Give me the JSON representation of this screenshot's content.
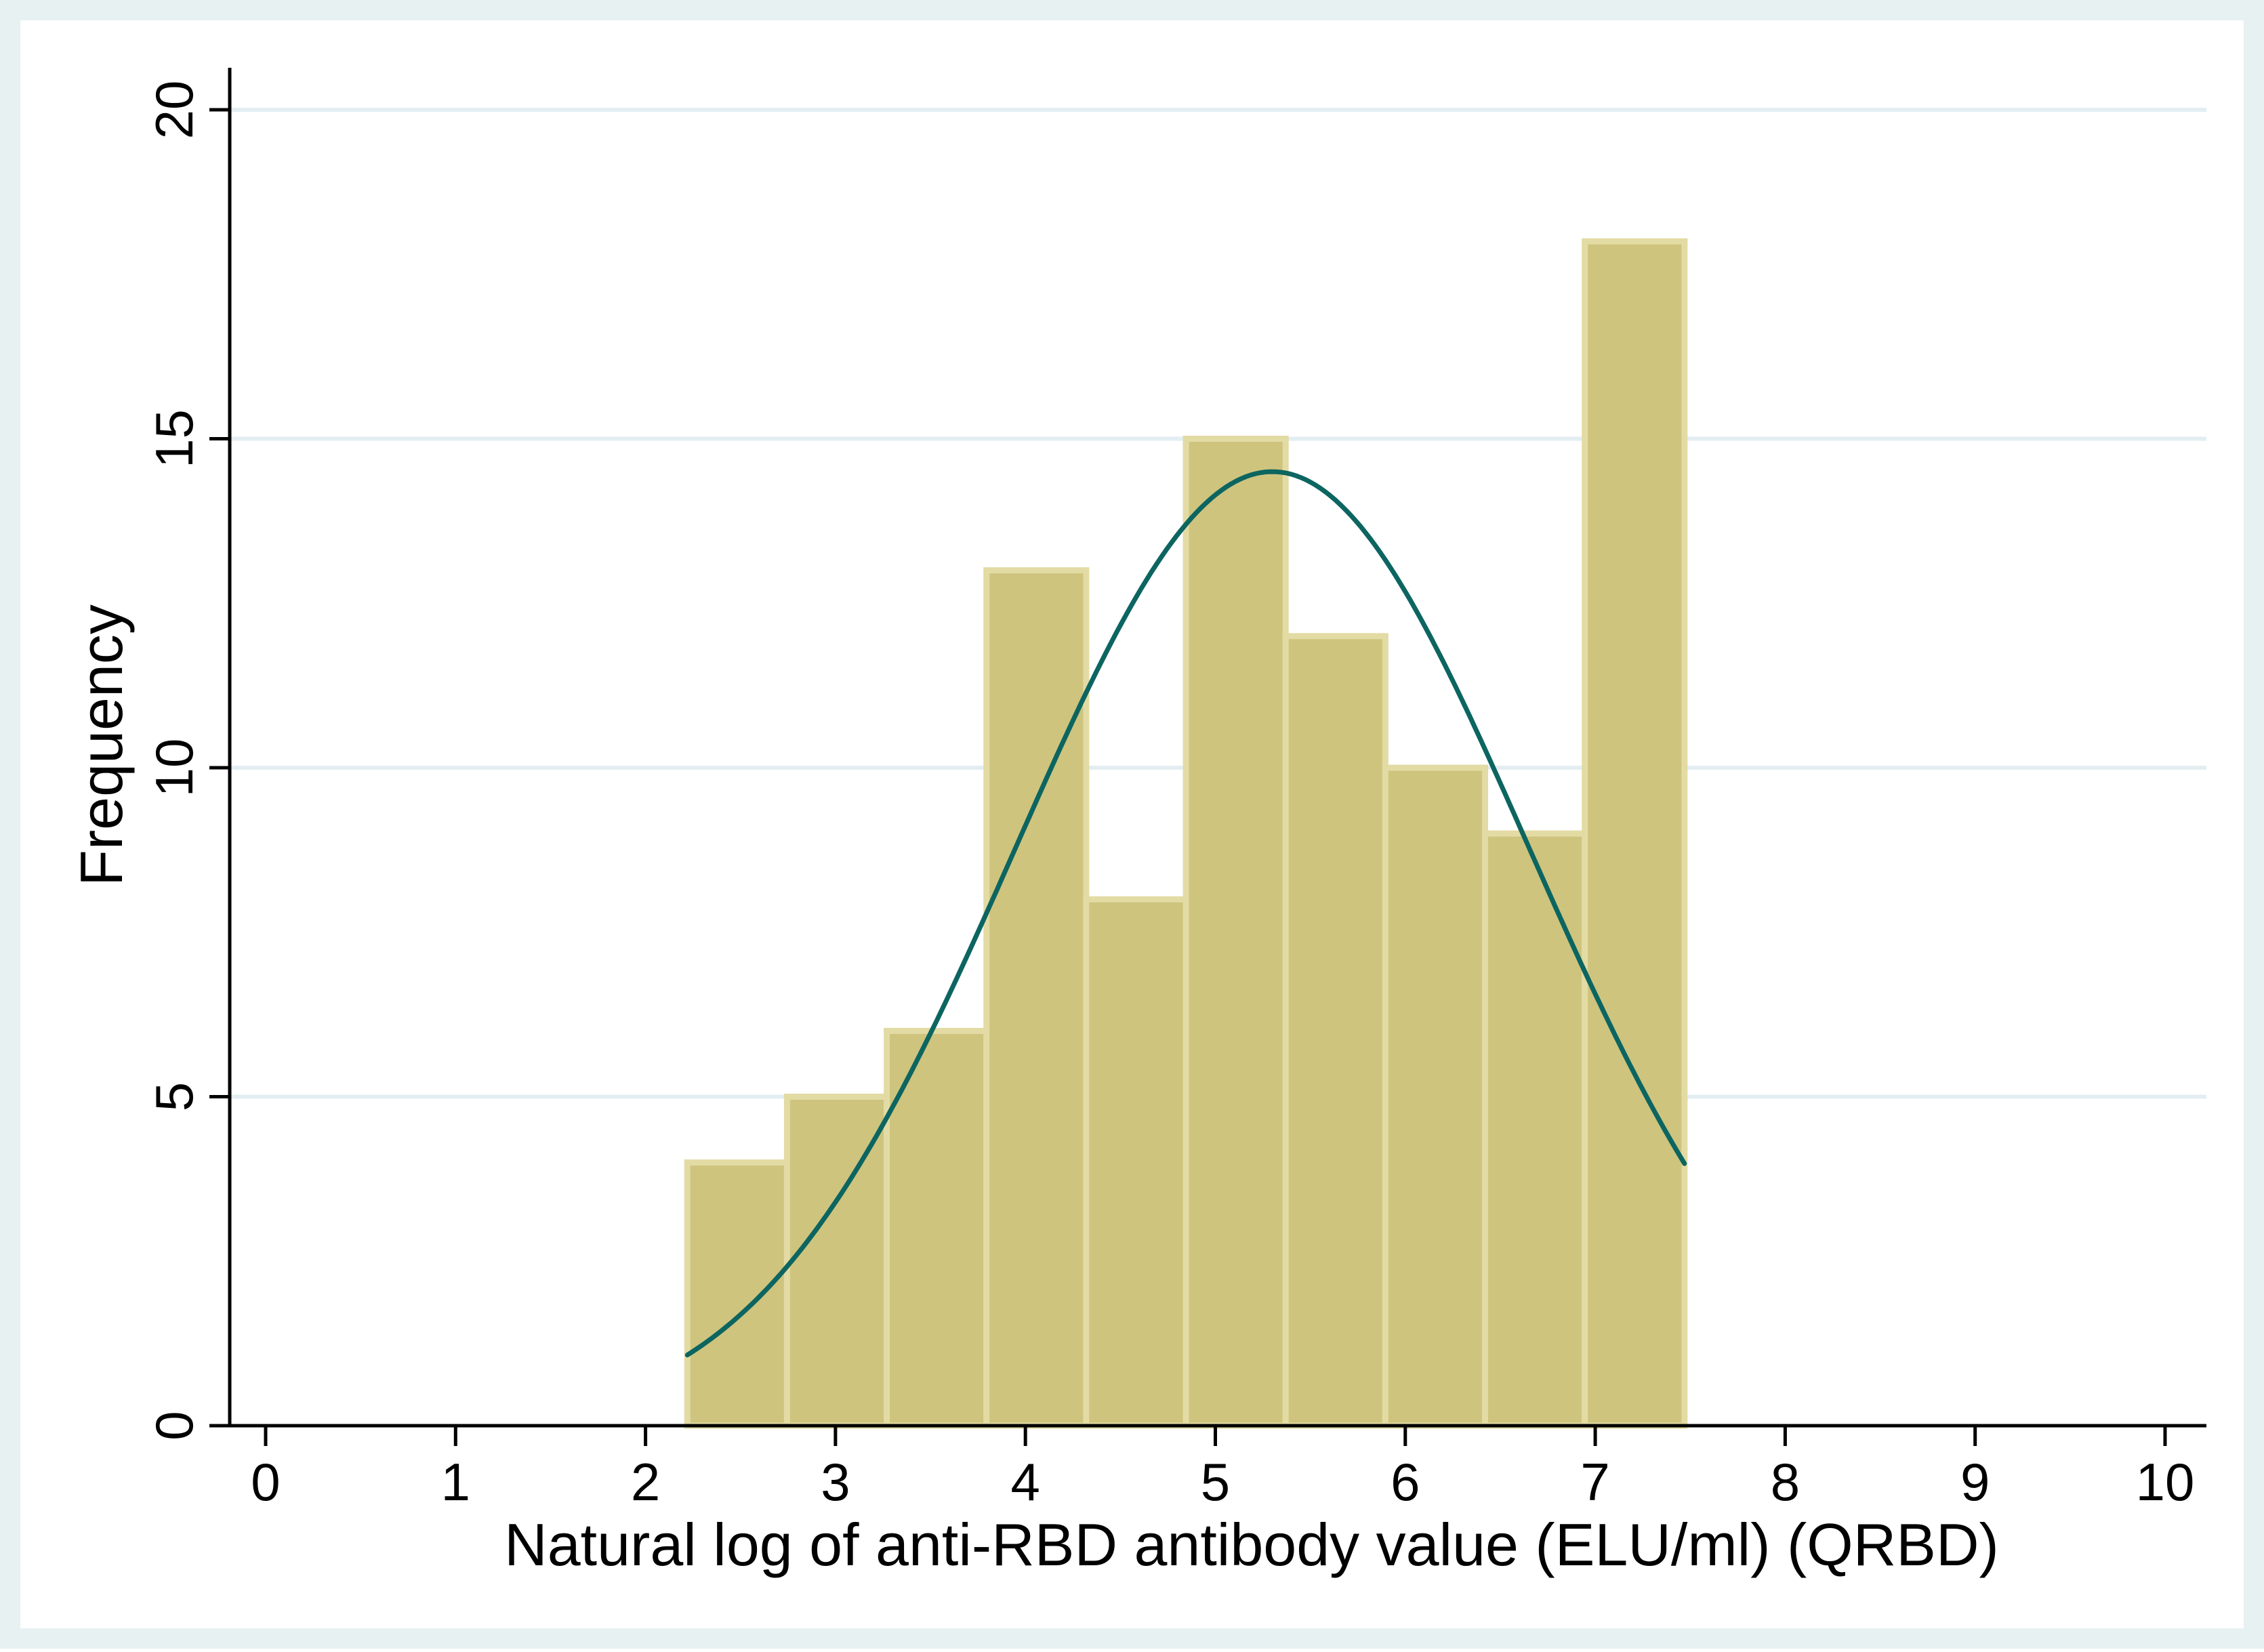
{
  "chart_data": {
    "type": "bar",
    "subtype": "histogram",
    "title": "",
    "xlabel": "Natural log of anti-RBD antibody value (ELU/ml) (QRBD)",
    "ylabel": "Frequency",
    "xlim": [
      -0.2,
      10.2
    ],
    "ylim": [
      0,
      20.6
    ],
    "x_ticks": [
      0,
      1,
      2,
      3,
      4,
      5,
      6,
      7,
      8,
      9,
      10
    ],
    "x_tick_labels": [
      "0",
      "1",
      "2",
      "3",
      "4",
      "5",
      "6",
      "7",
      "8",
      "9",
      "10"
    ],
    "y_ticks": [
      0,
      5,
      10,
      15,
      20
    ],
    "y_tick_labels": [
      "0",
      "5",
      "10",
      "15",
      "20"
    ],
    "grid": "horizontal",
    "bin_edges": [
      2.22,
      2.745,
      3.27,
      3.795,
      4.32,
      4.845,
      5.37,
      5.895,
      6.42,
      6.945,
      7.47
    ],
    "values": [
      4,
      5,
      6,
      13,
      8,
      15,
      12,
      10,
      9,
      18
    ],
    "normal_curve": {
      "name": "normal density",
      "mean": 5.3,
      "sd": 1.35,
      "peak": 14.5,
      "x_range": [
        2.22,
        7.47
      ]
    },
    "colors": {
      "outer_background": "#e7f1f1",
      "plot_background": "#ffffff",
      "bar_fill": "#cec47e",
      "bar_edge": "#e3dba4",
      "curve": "#0c6560",
      "grid": "#e3eef2",
      "axis": "#000000"
    }
  }
}
